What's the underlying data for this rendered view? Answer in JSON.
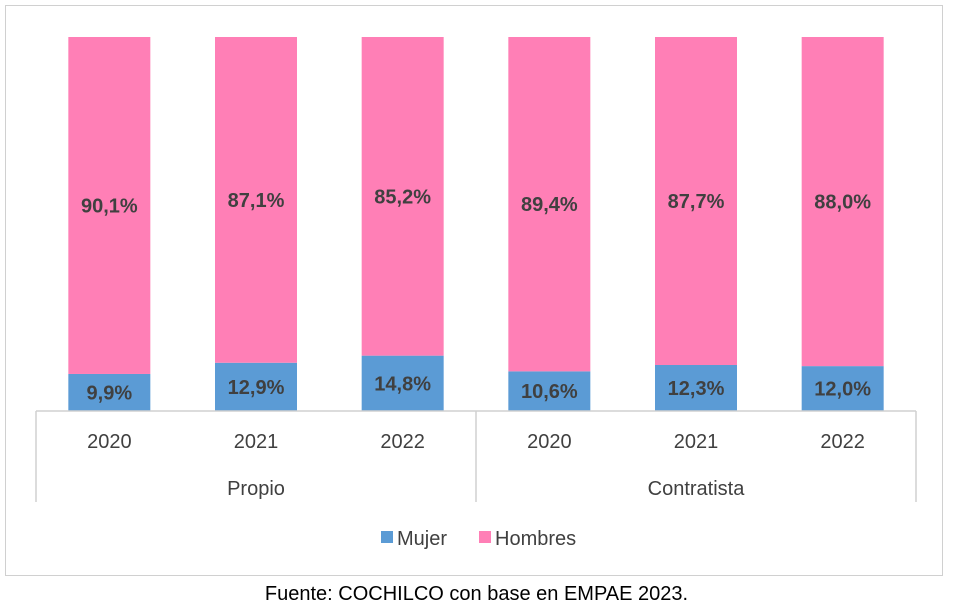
{
  "chart_data": {
    "type": "bar",
    "stacked": true,
    "normalized": true,
    "groups": [
      {
        "label": "Propio",
        "categories": [
          "2020",
          "2021",
          "2022"
        ]
      },
      {
        "label": "Contratista",
        "categories": [
          "2020",
          "2021",
          "2022"
        ]
      }
    ],
    "series": [
      {
        "name": "Mujer",
        "color": "#5b9bd5",
        "values": [
          9.9,
          12.9,
          14.8,
          10.6,
          12.3,
          12.0
        ],
        "labels": [
          "9,9%",
          "12,9%",
          "14,8%",
          "10,6%",
          "12,3%",
          "12,0%"
        ]
      },
      {
        "name": "Hombres",
        "color": "#ff7fb6",
        "values": [
          90.1,
          87.1,
          85.2,
          89.4,
          87.7,
          88.0
        ],
        "labels": [
          "90,1%",
          "87,1%",
          "85,2%",
          "89,4%",
          "87,7%",
          "88,0%"
        ]
      }
    ],
    "ylim": [
      0,
      100
    ],
    "legend_position": "bottom",
    "grid": false
  },
  "source": "Fuente: COCHILCO con base en EMPAE 2023."
}
